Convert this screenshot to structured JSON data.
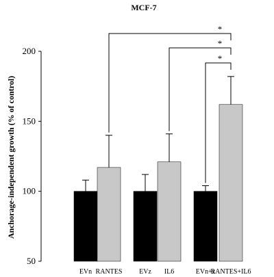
{
  "chart_data": {
    "type": "bar",
    "title": "MCF-7",
    "ylabel": "Anchorage-independent growth (% of control)",
    "xlabel": "",
    "ylim": [
      50,
      200
    ],
    "yticks": [
      50,
      100,
      150,
      200
    ],
    "grid": false,
    "legend": "none",
    "categories": [
      "EVn",
      "RANTES",
      "EVz",
      "IL6",
      "EVn+z",
      "RANTES+IL6"
    ],
    "values": [
      100,
      117,
      100,
      121,
      100,
      162
    ],
    "errors": [
      8,
      23,
      12,
      20,
      4,
      20
    ],
    "bar_colors": [
      "#000000",
      "#c8c8c8",
      "#000000",
      "#c8c8c8",
      "#000000",
      "#c8c8c8"
    ],
    "significance": [
      {
        "from": "RANTES",
        "to": "RANTES+IL6",
        "label": "*"
      },
      {
        "from": "IL6",
        "to": "RANTES+IL6",
        "label": "*"
      },
      {
        "from": "EVn+z",
        "to": "RANTES+IL6",
        "label": "*"
      }
    ]
  }
}
